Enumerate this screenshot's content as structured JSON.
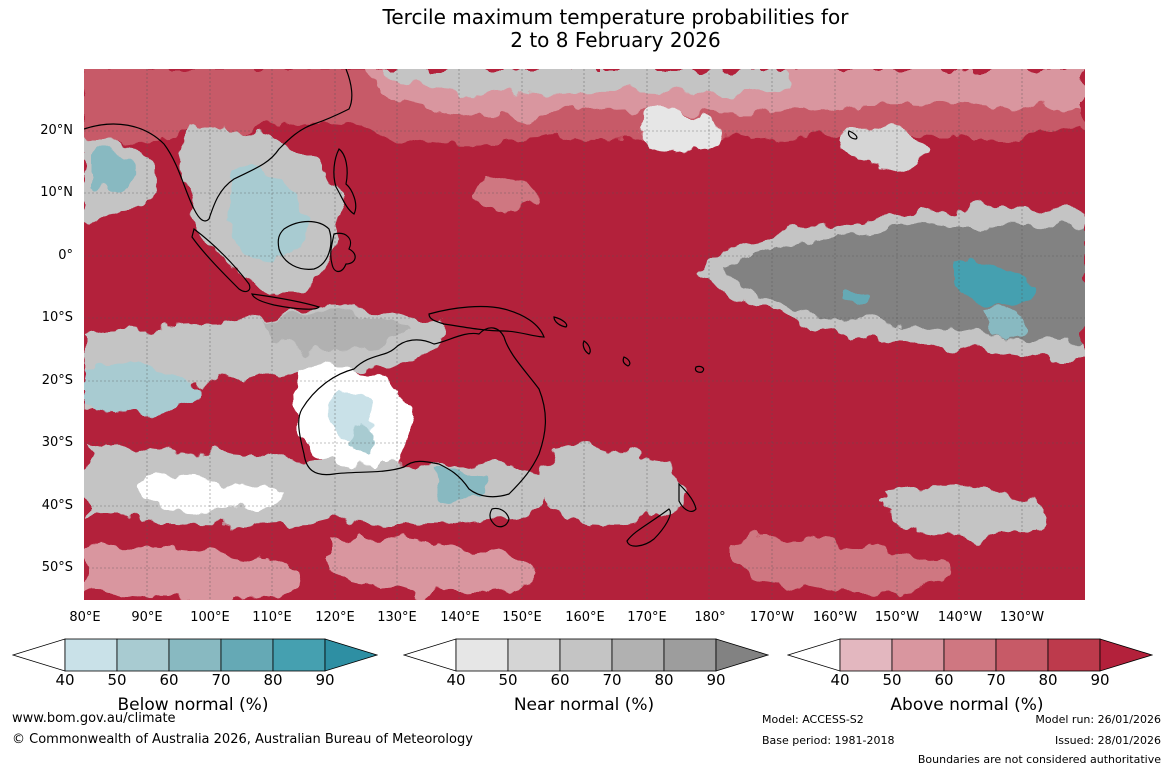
{
  "title_line1": "Tercile maximum temperature probabilities for",
  "title_line2": "2 to 8 February 2026",
  "map": {
    "lat_labels": [
      "20°N",
      "10°N",
      "0°",
      "10°S",
      "20°S",
      "30°S",
      "40°S",
      "50°S"
    ],
    "lon_labels": [
      "80°E",
      "90°E",
      "100°E",
      "110°E",
      "120°E",
      "130°E",
      "140°E",
      "150°E",
      "160°E",
      "170°E",
      "180°",
      "170°W",
      "160°W",
      "150°W",
      "140°W",
      "130°W"
    ],
    "dominant_category": "Above normal"
  },
  "colorbars": [
    {
      "label": "Below normal (%)",
      "ticks": [
        "40",
        "50",
        "60",
        "70",
        "80",
        "90"
      ],
      "colors": [
        "#ffffff",
        "#c9e1e8",
        "#a8cbd1",
        "#88b9c1",
        "#65a9b5",
        "#45a0b0",
        "#2e8fa3"
      ]
    },
    {
      "label": "Near normal (%)",
      "ticks": [
        "40",
        "50",
        "60",
        "70",
        "80",
        "90"
      ],
      "colors": [
        "#ffffff",
        "#e6e6e6",
        "#d5d5d5",
        "#c4c4c4",
        "#b1b1b1",
        "#9d9d9d",
        "#828282"
      ]
    },
    {
      "label": "Above normal (%)",
      "ticks": [
        "40",
        "50",
        "60",
        "70",
        "80",
        "90"
      ],
      "colors": [
        "#ffffff",
        "#e3b7bf",
        "#d9969f",
        "#cf7781",
        "#c75a67",
        "#bd3a4c",
        "#b3213b"
      ]
    }
  ],
  "footer": {
    "website": "www.bom.gov.au/climate",
    "copyright": "© Commonwealth of Australia 2026, Australian Bureau of Meteorology",
    "model": "Model: ACCESS-S2",
    "base_period": "Base period: 1981-2018",
    "model_run": "Model run: 26/01/2026",
    "issued": "Issued: 28/01/2026",
    "disclaimer": "Boundaries are not considered authoritative"
  }
}
